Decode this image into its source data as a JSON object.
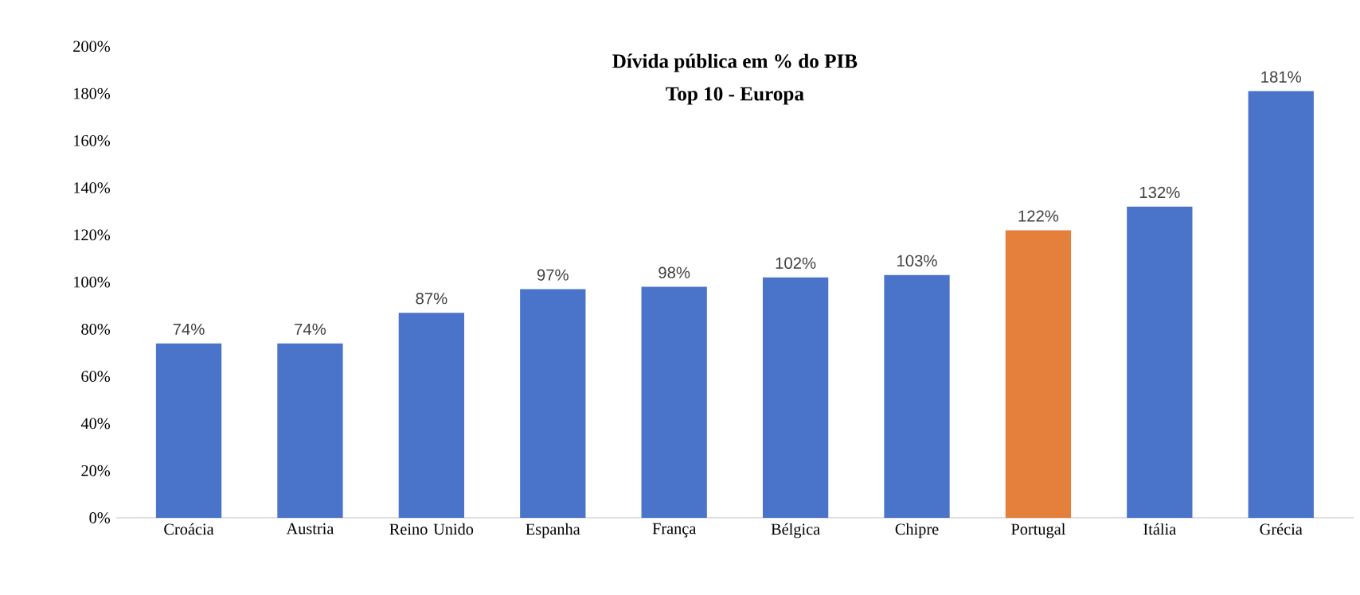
{
  "chart_data": {
    "type": "bar",
    "title": "Dívida pública em % do PIB",
    "subtitle": "Top 10 - Europa",
    "categories": [
      "Croácia",
      "Austria",
      "Reino Unido",
      "Espanha",
      "França",
      "Bélgica",
      "Chipre",
      "Portugal",
      "Itália",
      "Grécia"
    ],
    "values": [
      74,
      74,
      87,
      97,
      98,
      102,
      103,
      122,
      132,
      181
    ],
    "value_labels": [
      "74%",
      "74%",
      "87%",
      "97%",
      "98%",
      "102%",
      "103%",
      "122%",
      "132%",
      "181%"
    ],
    "colors": [
      "#4a74c9",
      "#4a74c9",
      "#4a74c9",
      "#4a74c9",
      "#4a74c9",
      "#4a74c9",
      "#4a74c9",
      "#e4803c",
      "#4a74c9",
      "#4a74c9"
    ],
    "ylim": [
      0,
      200
    ],
    "yticks": [
      {
        "value": 0,
        "label": "0%"
      },
      {
        "value": 20,
        "label": "20%"
      },
      {
        "value": 40,
        "label": "40%"
      },
      {
        "value": 60,
        "label": "60%"
      },
      {
        "value": 80,
        "label": "80%"
      },
      {
        "value": 100,
        "label": "100%"
      },
      {
        "value": 120,
        "label": "120%"
      },
      {
        "value": 140,
        "label": "140%"
      },
      {
        "value": 160,
        "label": "160%"
      },
      {
        "value": 180,
        "label": "180%"
      },
      {
        "value": 200,
        "label": "200%"
      }
    ]
  }
}
